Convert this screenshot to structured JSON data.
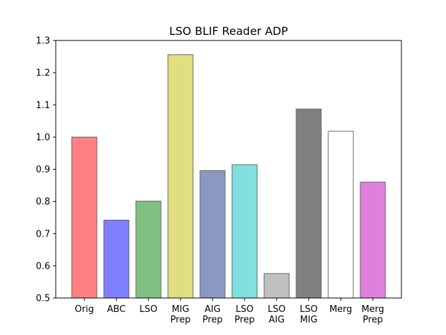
{
  "chart_data": {
    "type": "bar",
    "title": "LSO BLIF Reader ADP",
    "xlabel": "",
    "ylabel": "",
    "ylim": [
      0.5,
      1.3
    ],
    "yticks": [
      "0.5",
      "0.6",
      "0.7",
      "0.8",
      "0.9",
      "1.0",
      "1.1",
      "1.2",
      "1.3"
    ],
    "grid": false,
    "categories": [
      [
        "Orig"
      ],
      [
        "ABC"
      ],
      [
        "LSO"
      ],
      [
        "MIG",
        "Prep"
      ],
      [
        "AIG",
        "Prep"
      ],
      [
        "LSO",
        "Prep"
      ],
      [
        "LSO",
        "AIG"
      ],
      [
        "LSO",
        "MIG"
      ],
      [
        "Merg"
      ],
      [
        "Merg",
        "Prep"
      ]
    ],
    "values": [
      1.0,
      0.742,
      0.801,
      1.256,
      0.896,
      0.914,
      0.576,
      1.087,
      1.018,
      0.86
    ],
    "colors": [
      "#ff8080",
      "#8080ff",
      "#80c080",
      "#dfdf80",
      "#8a98c2",
      "#80dfdf",
      "#c0c0c0",
      "#808080",
      "#ffffff",
      "#df80df"
    ]
  }
}
